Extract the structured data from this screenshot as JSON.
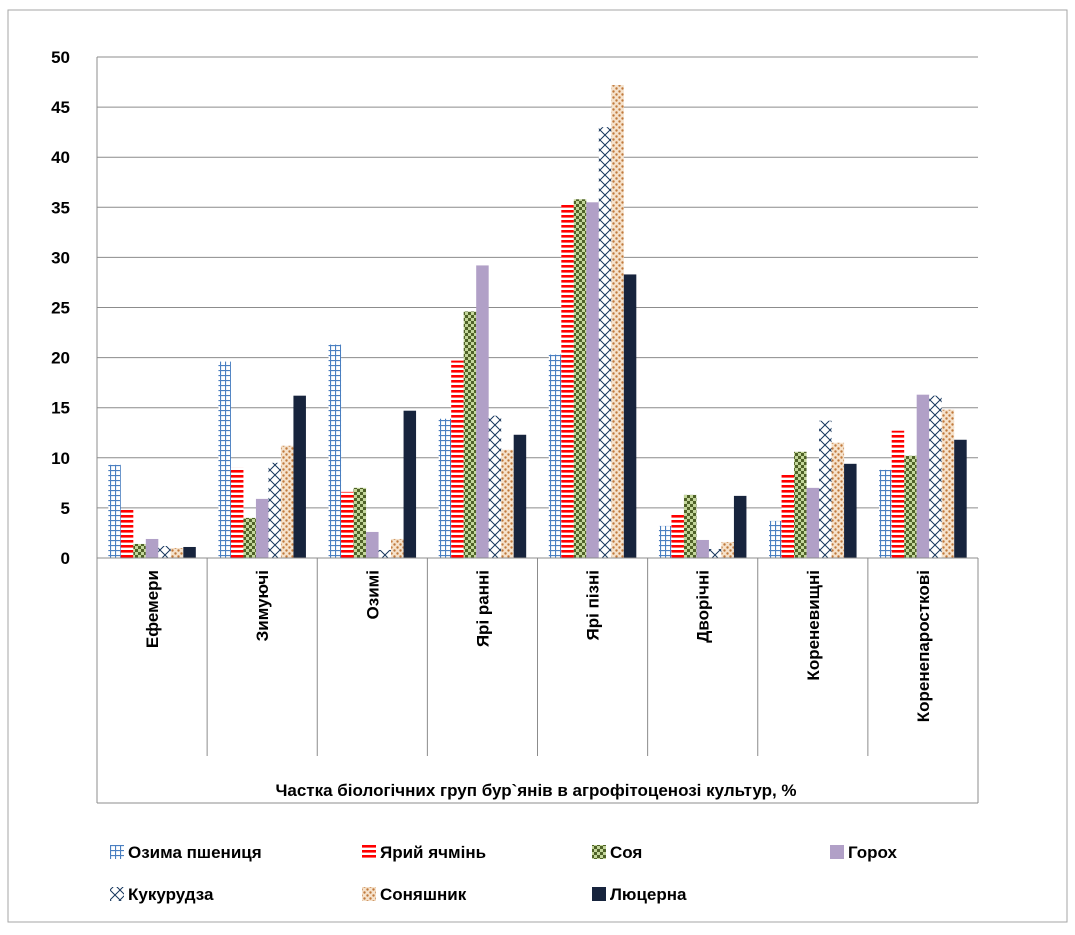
{
  "chart_data": {
    "type": "bar",
    "title": "",
    "xlabel": "Частка біологічних груп бур`янів в агрофітоценозі культур, %",
    "ylabel": "",
    "ylim": [
      0,
      50
    ],
    "yticks": [
      0,
      5,
      10,
      15,
      20,
      25,
      30,
      35,
      40,
      45,
      50
    ],
    "grid": true,
    "legend_position": "bottom",
    "categories": [
      "Ефемери",
      "Зимуючі",
      "Озимі",
      "Ярі ранні",
      "Ярі пізні",
      "Дворічні",
      "Кореневищні",
      "Коренепаросткові"
    ],
    "series": [
      {
        "name": "Озима пшениця",
        "color": "#4a7fc1",
        "pattern": "grid",
        "values": [
          9.3,
          19.6,
          21.3,
          13.9,
          20.3,
          3.2,
          3.7,
          8.8
        ]
      },
      {
        "name": "Ярий ячмінь",
        "color": "#ff0000",
        "pattern": "hstripe",
        "values": [
          4.9,
          9.0,
          6.6,
          19.7,
          35.3,
          4.4,
          8.3,
          12.7
        ]
      },
      {
        "name": "Соя",
        "color": "#4f6228",
        "pattern": "check",
        "values": [
          1.4,
          4.0,
          7.0,
          24.6,
          35.8,
          6.3,
          10.6,
          10.2
        ]
      },
      {
        "name": "Горох",
        "color": "#b1a0c7",
        "pattern": "solid",
        "values": [
          1.9,
          5.9,
          2.6,
          29.2,
          35.5,
          1.8,
          7.0,
          16.3
        ]
      },
      {
        "name": "Кукурудза",
        "color": "#17375e",
        "pattern": "cross",
        "values": [
          1.2,
          9.5,
          0.8,
          14.2,
          43.0,
          0.9,
          13.7,
          16.2
        ]
      },
      {
        "name": "Соняшник",
        "color": "#c0793c",
        "pattern": "dots",
        "values": [
          1.0,
          11.2,
          1.9,
          10.8,
          47.2,
          1.6,
          11.5,
          14.8
        ]
      },
      {
        "name": "Люцерна",
        "color": "#17243d",
        "pattern": "solid",
        "values": [
          1.1,
          16.2,
          14.7,
          12.3,
          28.3,
          6.2,
          9.4,
          11.8
        ]
      }
    ]
  }
}
